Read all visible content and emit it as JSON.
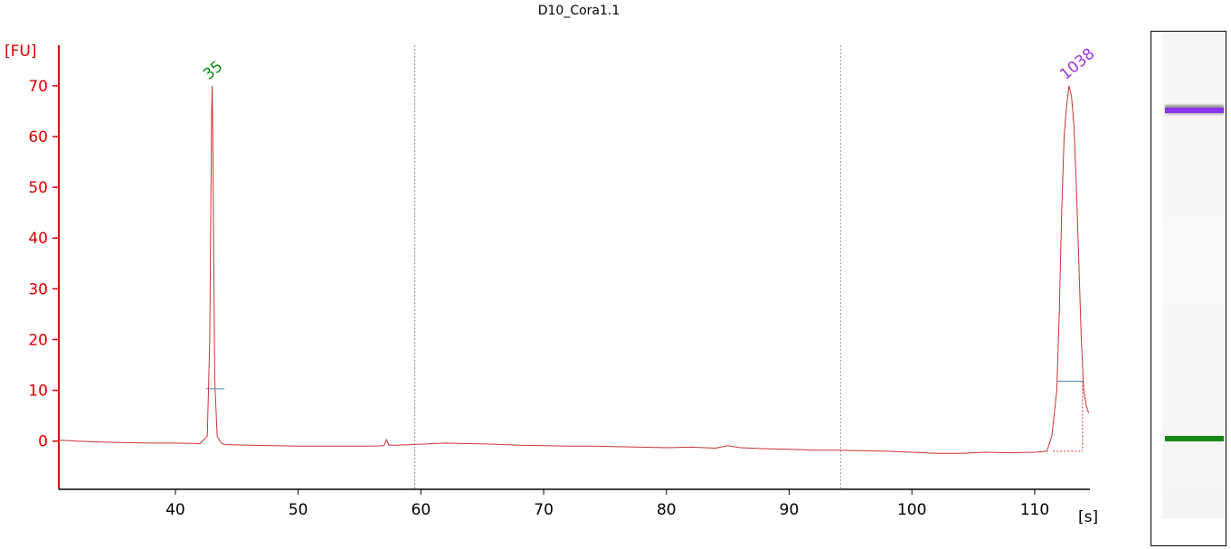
{
  "chart_data": {
    "type": "line",
    "title": "D10_Cora1.1",
    "xlabel": "[s]",
    "ylabel": "[FU]",
    "xlim": [
      30.5,
      114.5
    ],
    "ylim": [
      -9.5,
      78
    ],
    "x_ticks": [
      40,
      50,
      60,
      70,
      80,
      90,
      100,
      110
    ],
    "y_ticks": [
      0,
      10,
      20,
      30,
      40,
      50,
      60,
      70
    ],
    "grid": false,
    "line_color": "#cc3333",
    "axis_color": "#dd0000",
    "vertical_markers": [
      {
        "x": 59.5,
        "color": "#8888cc"
      },
      {
        "x": 94.2,
        "color": "#99aaaa"
      }
    ],
    "peaks": [
      {
        "x": 43.0,
        "y": 70,
        "label": "35",
        "color": "#118811",
        "baseline": 10.3,
        "base_x": [
          42.5,
          44.0
        ]
      },
      {
        "x": 112.8,
        "y": 70,
        "label": "1038",
        "color": "#9933dd",
        "baseline": 11.8,
        "base_x": [
          111.8,
          114.0
        ]
      }
    ],
    "series": [
      {
        "x": [
          30.5,
          32,
          34,
          36,
          38,
          40,
          42,
          42.6,
          42.8,
          42.95,
          43.0,
          43.05,
          43.2,
          43.4,
          43.7,
          44,
          46,
          48,
          50,
          52,
          54,
          56,
          57,
          57.2,
          57.4,
          58,
          60,
          62,
          64,
          66,
          68,
          70,
          72,
          74,
          76,
          78,
          80,
          82,
          84,
          85,
          86,
          88,
          90,
          92,
          94,
          96,
          98,
          100,
          102,
          104,
          106,
          108,
          110,
          111,
          111.4,
          111.8,
          112.0,
          112.2,
          112.4,
          112.6,
          112.8,
          113.0,
          113.2,
          113.4,
          113.6,
          113.8,
          114.0,
          114.2,
          114.4
        ],
        "y": [
          0.2,
          0.0,
          -0.2,
          -0.3,
          -0.4,
          -0.4,
          -0.5,
          1.0,
          20,
          65,
          70,
          60,
          12,
          1.0,
          -0.3,
          -0.7,
          -0.8,
          -0.9,
          -1.0,
          -1.0,
          -1.0,
          -1.0,
          -0.9,
          0.3,
          -0.8,
          -0.8,
          -0.6,
          -0.4,
          -0.5,
          -0.6,
          -0.8,
          -0.9,
          -1.0,
          -1.0,
          -1.1,
          -1.2,
          -1.3,
          -1.2,
          -1.4,
          -0.9,
          -1.3,
          -1.5,
          -1.6,
          -1.8,
          -1.8,
          -1.9,
          -2.0,
          -2.2,
          -2.4,
          -2.4,
          -2.2,
          -2.3,
          -2.2,
          -2.0,
          1.0,
          10,
          25,
          45,
          60,
          66,
          70,
          68,
          62,
          50,
          35,
          20,
          10,
          7,
          5.5
        ]
      }
    ]
  },
  "gel": {
    "bands": [
      {
        "pos": 0.162,
        "color": "#8833ee",
        "label": "upper marker"
      },
      {
        "pos": 0.833,
        "color": "#118811",
        "label": "lower marker"
      }
    ]
  }
}
